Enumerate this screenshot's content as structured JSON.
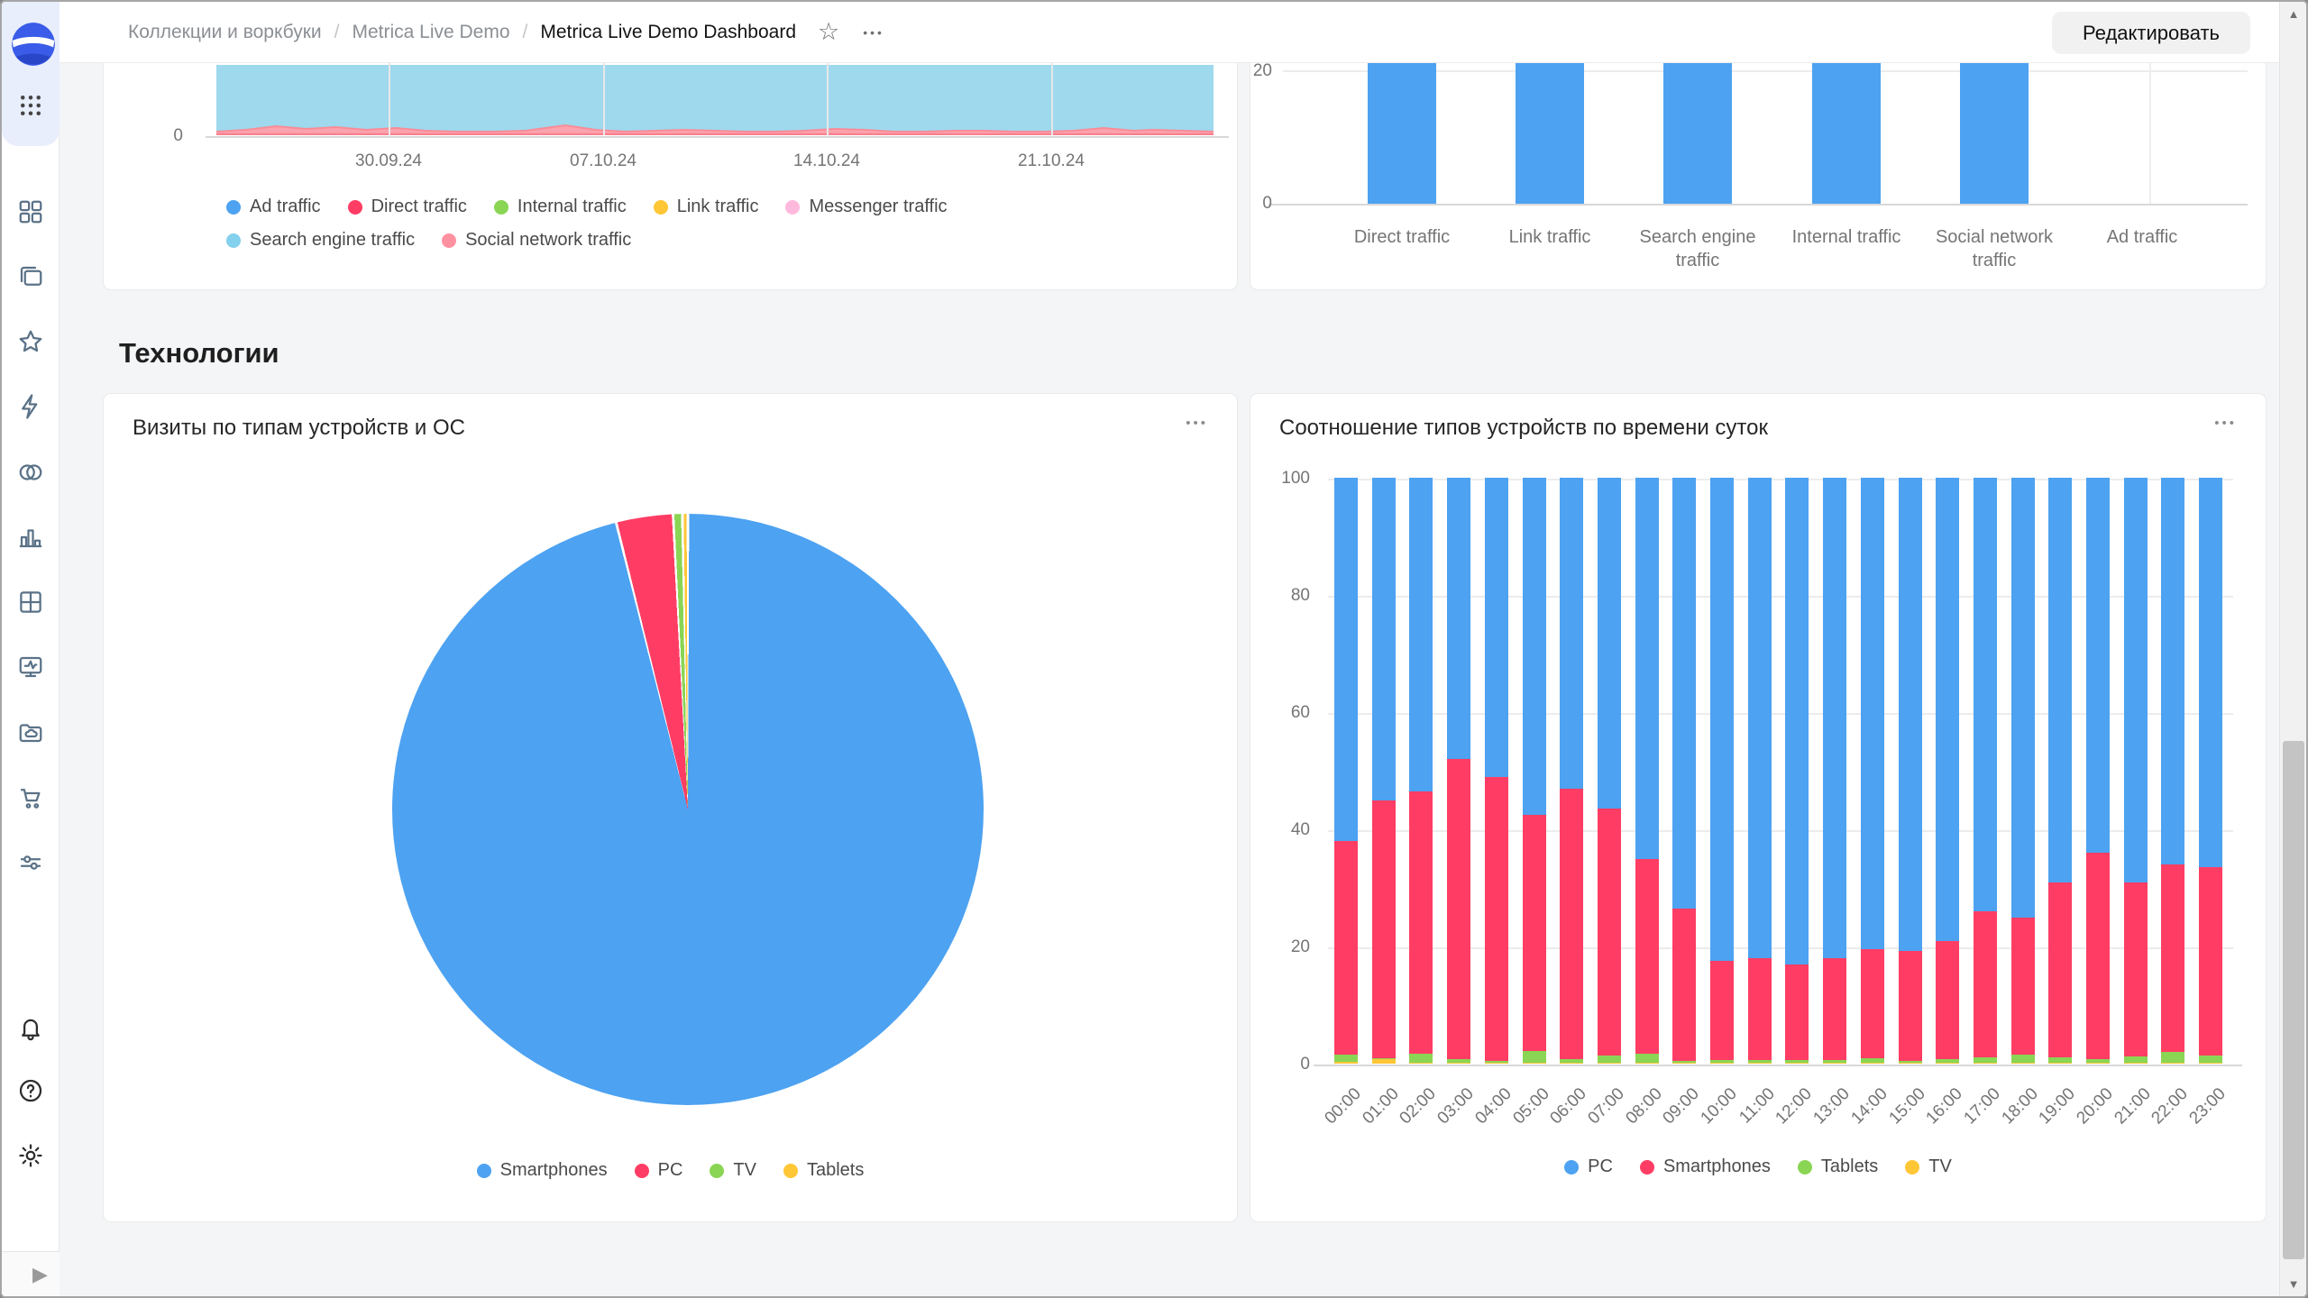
{
  "header": {
    "breadcrumb": [
      {
        "label": "Коллекции и воркбуки"
      },
      {
        "label": "Metrica Live Demo"
      },
      {
        "label": "Metrica Live Demo Dashboard"
      }
    ],
    "separator": "/",
    "edit_button": "Редактировать"
  },
  "ui": {
    "star_icon": "☆",
    "more_icon": "•••",
    "card_menu_icon": "•••",
    "scroll_up": "▲",
    "scroll_down": "▼",
    "expand_icon": "▶"
  },
  "sidebar": {
    "logo": "datalens-logo",
    "apps_icon": "apps-grid",
    "main_items": [
      "grid",
      "collections",
      "favorites",
      "editor",
      "connections",
      "charts",
      "datasets",
      "dashboards",
      "storage",
      "marketplace",
      "services"
    ],
    "bottom_items": [
      "notifications",
      "help",
      "settings"
    ]
  },
  "section_title": "Технологии",
  "palette": {
    "blue": "#4DA2F1",
    "red": "#FF3D64",
    "green": "#8AD554",
    "yellow": "#FFC636",
    "light_pink": "#FFB9DD",
    "light_blue": "#84D1EE",
    "salmon": "#FF91A1"
  },
  "cards": {
    "traffic_area": {
      "chart_data": {
        "type": "area",
        "stacked": true,
        "clipped_top": true,
        "x_ticks": [
          "30.09.24",
          "07.10.24",
          "14.10.24",
          "21.10.24"
        ],
        "y_ticks": [
          "0"
        ],
        "legend": [
          {
            "label": "Ad traffic",
            "color": "#4DA2F1"
          },
          {
            "label": "Direct traffic",
            "color": "#FF3D64"
          },
          {
            "label": "Internal traffic",
            "color": "#8AD554"
          },
          {
            "label": "Link traffic",
            "color": "#FFC636"
          },
          {
            "label": "Messenger traffic",
            "color": "#FFB9DD"
          },
          {
            "label": "Search engine traffic",
            "color": "#84D1EE"
          },
          {
            "label": "Social network traffic",
            "color": "#FF91A1"
          }
        ],
        "note": "Search engine traffic area fills the whole visible plot (clipped above); Social network traffic is a small wave along the baseline; other series are near zero.",
        "social_wave_points": [
          [
            0,
            2
          ],
          [
            0.03,
            4
          ],
          [
            0.06,
            8
          ],
          [
            0.09,
            5
          ],
          [
            0.12,
            7
          ],
          [
            0.15,
            4
          ],
          [
            0.18,
            6
          ],
          [
            0.21,
            3
          ],
          [
            0.24,
            2
          ],
          [
            0.28,
            2
          ],
          [
            0.31,
            3
          ],
          [
            0.35,
            9
          ],
          [
            0.38,
            4
          ],
          [
            0.41,
            2
          ],
          [
            0.44,
            3
          ],
          [
            0.47,
            4
          ],
          [
            0.5,
            3
          ],
          [
            0.53,
            2
          ],
          [
            0.56,
            2
          ],
          [
            0.59,
            3
          ],
          [
            0.62,
            5
          ],
          [
            0.65,
            4
          ],
          [
            0.68,
            2
          ],
          [
            0.71,
            2
          ],
          [
            0.74,
            3
          ],
          [
            0.77,
            3
          ],
          [
            0.8,
            2
          ],
          [
            0.83,
            2
          ],
          [
            0.86,
            3
          ],
          [
            0.89,
            6
          ],
          [
            0.92,
            3
          ],
          [
            0.94,
            4
          ],
          [
            0.97,
            3
          ],
          [
            1,
            2
          ]
        ]
      }
    },
    "traffic_bars": {
      "chart_data": {
        "type": "bar",
        "categories": [
          "Direct traffic",
          "Link traffic",
          "Search engine traffic",
          "Internal traffic",
          "Social network traffic",
          "Ad traffic"
        ],
        "values": [
          21,
          21,
          21,
          21,
          21,
          0
        ],
        "clipped_top": true,
        "note": "First five bars extend above the visible area (true values > 20, clipped by scroll); Ad traffic bar not visible.",
        "y_ticks": [
          0,
          20
        ],
        "bar_color": "#4DA2F1"
      }
    },
    "pie": {
      "title": "Визиты по типам устройств и ОС",
      "chart_data": {
        "type": "pie",
        "segments": [
          {
            "label": "Smartphones",
            "value": 96.1,
            "color": "#4DA2F1"
          },
          {
            "label": "PC",
            "value": 3.1,
            "color": "#FF3D64"
          },
          {
            "label": "TV",
            "value": 0.5,
            "color": "#8AD554"
          },
          {
            "label": "Tablets",
            "value": 0.3,
            "color": "#FFC636"
          }
        ],
        "unit": "% share of visits",
        "legend_position": "bottom"
      }
    },
    "stacked": {
      "title": "Соотношение типов устройств по времени суток",
      "chart_data": {
        "type": "bar",
        "stacked": "percent",
        "ylim": [
          0,
          100
        ],
        "y_ticks": [
          0,
          20,
          40,
          60,
          80,
          100
        ],
        "categories": [
          "00:00",
          "01:00",
          "02:00",
          "03:00",
          "04:00",
          "05:00",
          "06:00",
          "07:00",
          "08:00",
          "09:00",
          "10:00",
          "11:00",
          "12:00",
          "13:00",
          "14:00",
          "15:00",
          "16:00",
          "17:00",
          "18:00",
          "19:00",
          "20:00",
          "21:00",
          "22:00",
          "23:00"
        ],
        "series": [
          {
            "name": "PC",
            "color": "#4DA2F1",
            "values": [
              62,
              55,
              53.5,
              48,
              51,
              57.5,
              53,
              56.5,
              65,
              73.5,
              82.5,
              82,
              83,
              82,
              80.5,
              80.7,
              79,
              74,
              75,
              69,
              64,
              69,
              66,
              66.5
            ]
          },
          {
            "name": "Smartphones",
            "color": "#FF3D64",
            "values": [
              36.4,
              44,
              44.8,
              51.3,
              48.5,
              40.3,
              46.2,
              42.1,
              33.3,
              26,
              16.9,
              17.4,
              16.4,
              17.4,
              18.6,
              18.8,
              20.3,
              24.9,
              23.5,
              29.9,
              35.3,
              29.8,
              32,
              32.1
            ]
          },
          {
            "name": "Tablets",
            "color": "#8AD554",
            "values": [
              1.3,
              0.3,
              1.5,
              0.5,
              0.4,
              2,
              0.6,
              1.2,
              1.5,
              0.4,
              0.5,
              0.5,
              0.5,
              0.5,
              0.8,
              0.4,
              0.6,
              1,
              1.4,
              1,
              0.6,
              1.1,
              1.9,
              1.2
            ]
          },
          {
            "name": "TV",
            "color": "#FFC636",
            "values": [
              0.3,
              0.7,
              0.2,
              0.2,
              0.1,
              0.2,
              0.2,
              0.2,
              0.2,
              0.1,
              0.1,
              0.1,
              0.1,
              0.1,
              0.1,
              0.1,
              0.1,
              0.1,
              0.1,
              0.1,
              0.1,
              0.1,
              0.1,
              0.2
            ]
          }
        ],
        "stack_order_bottom_to_top": [
          "TV",
          "Tablets",
          "Smartphones",
          "PC"
        ],
        "legend_position": "bottom"
      }
    }
  }
}
